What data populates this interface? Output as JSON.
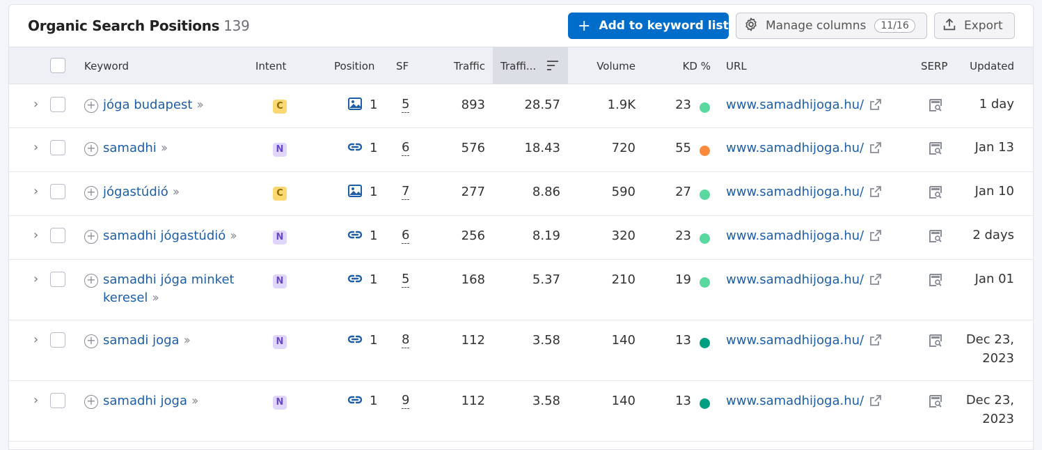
{
  "header": {
    "title": "Organic Search Positions",
    "count": "139",
    "add_button": "Add to keyword list",
    "manage_button": "Manage columns",
    "manage_badge": "11/16",
    "export_button": "Export"
  },
  "columns": {
    "keyword": "Keyword",
    "intent": "Intent",
    "position": "Position",
    "sf": "SF",
    "traffic": "Traffic",
    "traffic_pct": "Traffi...",
    "volume": "Volume",
    "kd": "KD %",
    "url": "URL",
    "serp": "SERP",
    "updated": "Updated"
  },
  "kd_colors": {
    "easy": "#59d9a0",
    "hard": "#fb8a3c",
    "very_easy": "#009f81"
  },
  "rows": [
    {
      "keyword": "jóga budapest",
      "intent": "C",
      "pos_icon": "image-icon",
      "position": "1",
      "sf": "5",
      "traffic": "893",
      "traffic_pct": "28.57",
      "volume": "1.9K",
      "kd": "23",
      "kd_color": "#59d9a0",
      "url": "www.samadhijoga.hu/",
      "updated": "1 day"
    },
    {
      "keyword": "samadhi",
      "intent": "N",
      "pos_icon": "link-icon",
      "position": "1",
      "sf": "6",
      "traffic": "576",
      "traffic_pct": "18.43",
      "volume": "720",
      "kd": "55",
      "kd_color": "#fb8a3c",
      "url": "www.samadhijoga.hu/",
      "updated": "Jan 13"
    },
    {
      "keyword": "jógastúdió",
      "intent": "C",
      "pos_icon": "image-icon",
      "position": "1",
      "sf": "7",
      "traffic": "277",
      "traffic_pct": "8.86",
      "volume": "590",
      "kd": "27",
      "kd_color": "#59d9a0",
      "url": "www.samadhijoga.hu/",
      "updated": "Jan 10"
    },
    {
      "keyword": "samadhi jógastúdió",
      "intent": "N",
      "pos_icon": "link-icon",
      "position": "1",
      "sf": "6",
      "traffic": "256",
      "traffic_pct": "8.19",
      "volume": "320",
      "kd": "23",
      "kd_color": "#59d9a0",
      "url": "www.samadhijoga.hu/",
      "updated": "2 days"
    },
    {
      "keyword": "samadhi jóga minket keresel",
      "intent": "N",
      "pos_icon": "link-icon",
      "position": "1",
      "sf": "5",
      "traffic": "168",
      "traffic_pct": "5.37",
      "volume": "210",
      "kd": "19",
      "kd_color": "#59d9a0",
      "url": "www.samadhijoga.hu/",
      "updated": "Jan 01"
    },
    {
      "keyword": "samadi joga",
      "intent": "N",
      "pos_icon": "link-icon",
      "position": "1",
      "sf": "8",
      "traffic": "112",
      "traffic_pct": "3.58",
      "volume": "140",
      "kd": "13",
      "kd_color": "#009f81",
      "url": "www.samadhijoga.hu/",
      "updated": "Dec 23, 2023"
    },
    {
      "keyword": "samadhi joga",
      "intent": "N",
      "pos_icon": "link-icon",
      "position": "1",
      "sf": "9",
      "traffic": "112",
      "traffic_pct": "3.58",
      "volume": "140",
      "kd": "13",
      "kd_color": "#009f81",
      "url": "www.samadhijoga.hu/",
      "updated": "Dec 23, 2023"
    }
  ]
}
